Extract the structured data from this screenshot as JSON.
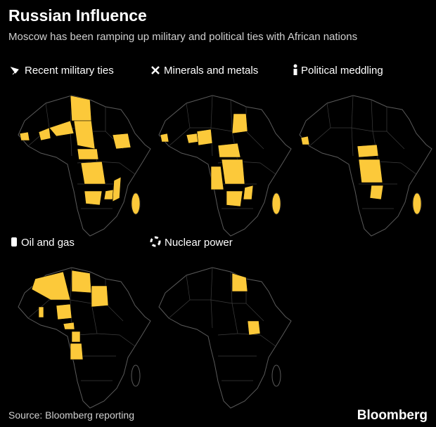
{
  "header": {
    "title": "Russian Influence",
    "subtitle": "Moscow has been ramping up military and political ties with African nations"
  },
  "panels": [
    {
      "title": "Recent military ties"
    },
    {
      "title": "Minerals and metals"
    },
    {
      "title": "Political meddling"
    },
    {
      "title": "Oil and gas"
    },
    {
      "title": "Nuclear power"
    }
  ],
  "footer": {
    "source": "Source: Bloomberg reporting",
    "brand": "Bloomberg"
  }
}
